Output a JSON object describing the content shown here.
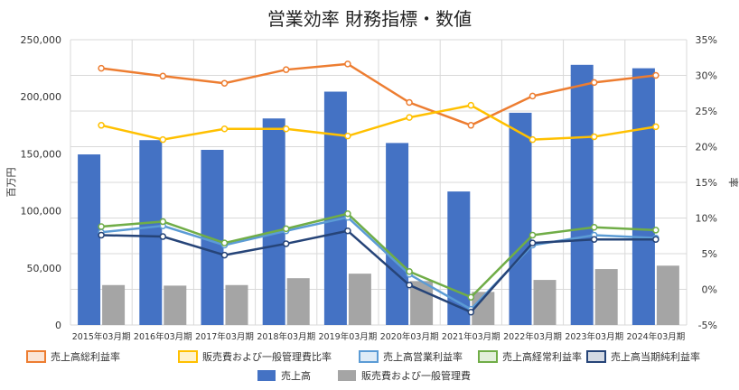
{
  "chart_data": {
    "type": "bar",
    "title": "営業効率 財務指標・数値",
    "ylabel_left": "百万円",
    "ylabel_right": "率",
    "categories": [
      "2015年03月期",
      "2016年03月期",
      "2017年03月期",
      "2018年03月期",
      "2019年03月期",
      "2020年03月期",
      "2021年03月期",
      "2022年03月期",
      "2023年03月期",
      "2024年03月期"
    ],
    "ylim_left": [
      0,
      250000
    ],
    "yticks_left": [
      "0",
      "50,000",
      "100,000",
      "150,000",
      "200,000",
      "250,000"
    ],
    "ylim_right": [
      -5,
      35
    ],
    "yticks_right": [
      "-5%",
      "0%",
      "5%",
      "10%",
      "15%",
      "20%",
      "25%",
      "30%",
      "35%"
    ],
    "grid": true,
    "legend_position": "bottom",
    "bar_series": [
      {
        "name": "売上高",
        "color": "#4472c4",
        "values": [
          149500,
          162000,
          153500,
          181000,
          204500,
          159500,
          117000,
          186000,
          228000,
          225000
        ]
      },
      {
        "name": "販売費および一般管理費",
        "color": "#a5a5a5",
        "values": [
          35000,
          34500,
          35000,
          41000,
          45000,
          38500,
          29000,
          39500,
          49000,
          52000
        ]
      }
    ],
    "line_series": [
      {
        "name": "売上高総利益率",
        "color": "#ed7d31",
        "values": [
          31.0,
          29.9,
          28.9,
          30.8,
          31.6,
          26.2,
          23.0,
          27.1,
          29.0,
          30.0
        ]
      },
      {
        "name": "販売費および一般管理費比率",
        "color": "#ffc000",
        "values": [
          23.0,
          21.0,
          22.5,
          22.5,
          21.5,
          24.1,
          25.8,
          21.0,
          21.4,
          22.8
        ]
      },
      {
        "name": "売上高営業利益率",
        "color": "#5b9bd5",
        "values": [
          8.0,
          8.9,
          6.2,
          8.2,
          10.1,
          2.1,
          -2.8,
          6.2,
          7.6,
          7.2
        ]
      },
      {
        "name": "売上高経常利益率",
        "color": "#70ad47",
        "values": [
          8.8,
          9.5,
          6.5,
          8.5,
          10.6,
          2.5,
          -1.1,
          7.6,
          8.7,
          8.3
        ]
      },
      {
        "name": "売上高当期純利益率",
        "color": "#264478",
        "values": [
          7.6,
          7.4,
          4.8,
          6.4,
          8.2,
          0.6,
          -3.2,
          6.5,
          7.0,
          7.0
        ]
      }
    ]
  }
}
